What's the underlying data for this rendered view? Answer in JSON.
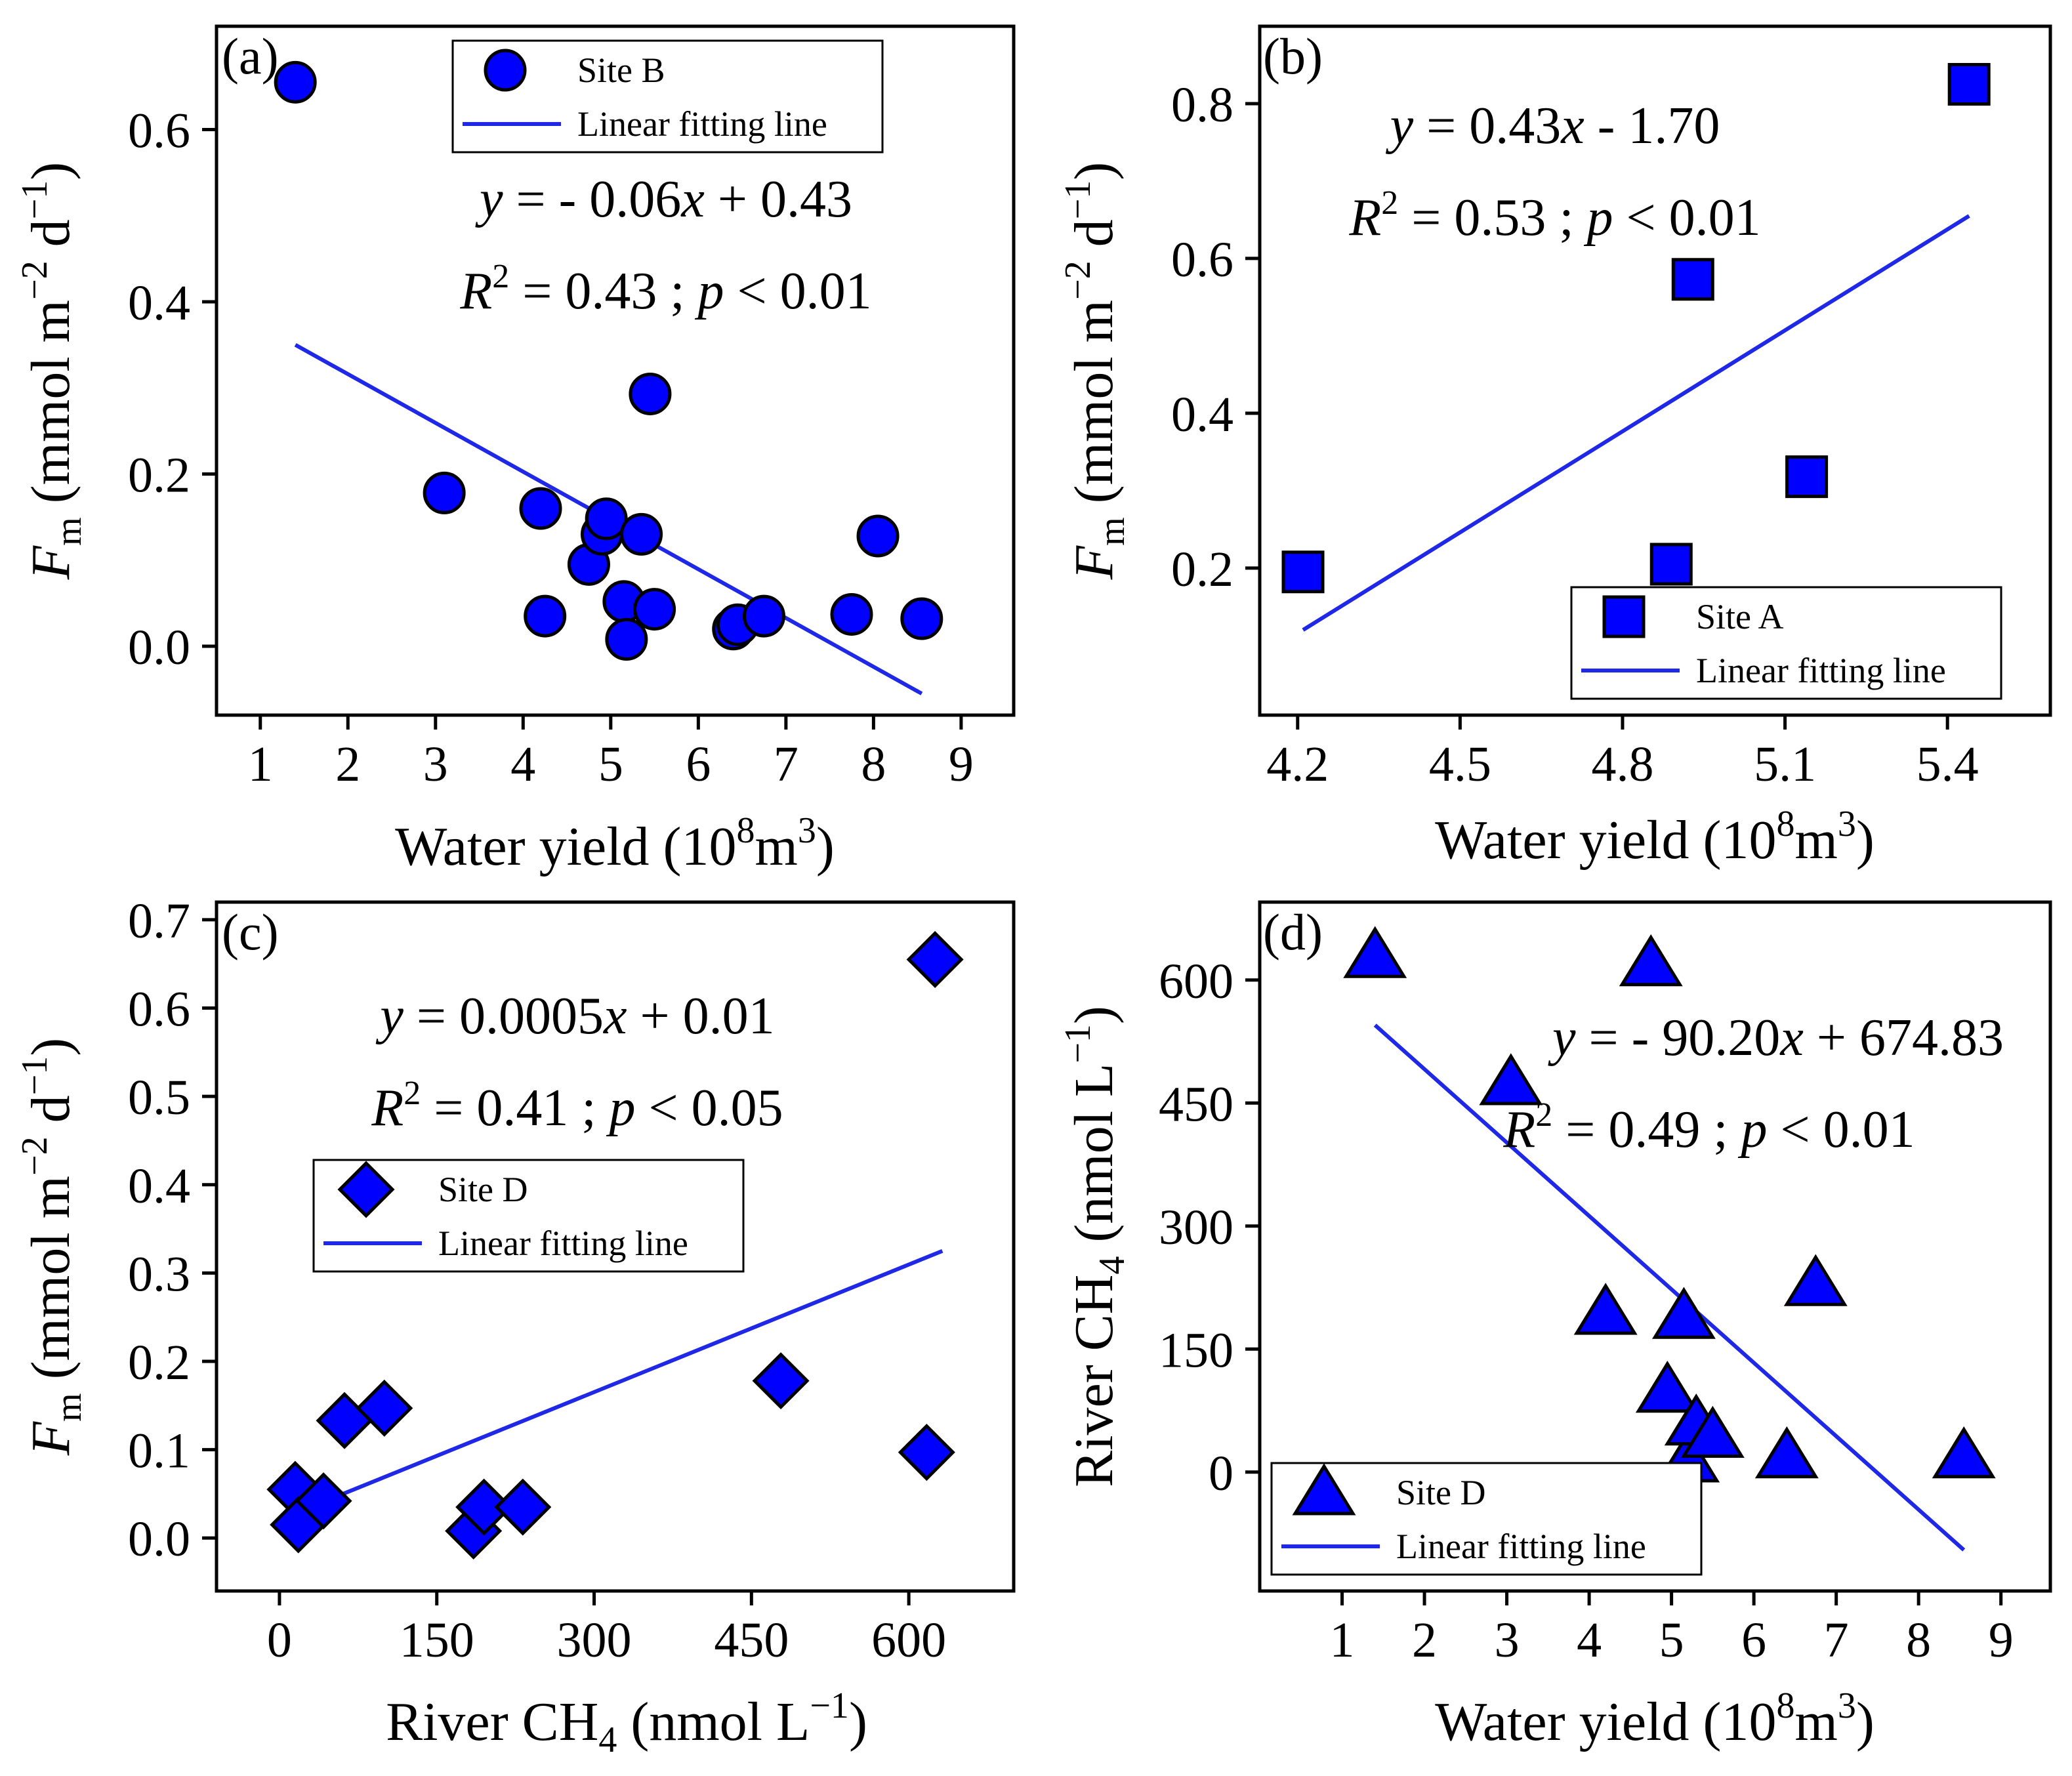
{
  "chart_data": [
    {
      "id": "a",
      "type": "scatter",
      "panel_label": "(a)",
      "xlabel_main": "Water yield (10",
      "xlabel_sup1": "8",
      "xlabel_mid": "m",
      "xlabel_sup2": "3",
      "xlabel_end": ")",
      "ylabel_var": "F",
      "ylabel_sub": "m",
      "ylabel_main": " (mmol m",
      "ylabel_sup1": "−2",
      "ylabel_mid": " d",
      "ylabel_sup2": "−1",
      "ylabel_end": ")",
      "xlim": [
        0.5,
        9.6
      ],
      "ylim": [
        -0.08,
        0.72
      ],
      "xticks": [
        1,
        2,
        3,
        4,
        5,
        6,
        7,
        8,
        9
      ],
      "yticks": [
        0.0,
        0.2,
        0.4,
        0.6
      ],
      "ytick_labels": [
        "0.0",
        "0.2",
        "0.4",
        "0.6"
      ],
      "marker": "circle",
      "series": [
        {
          "name": "Site B",
          "x": [
            1.4,
            3.1,
            4.2,
            4.25,
            4.75,
            4.9,
            4.95,
            5.15,
            5.18,
            5.35,
            5.45,
            5.5,
            6.4,
            6.45,
            6.75,
            7.75,
            8.05,
            8.55
          ],
          "y": [
            0.655,
            0.178,
            0.16,
            0.035,
            0.095,
            0.13,
            0.148,
            0.052,
            0.008,
            0.13,
            0.293,
            0.043,
            0.02,
            0.025,
            0.035,
            0.037,
            0.128,
            0.032
          ]
        }
      ],
      "fit": {
        "name": "Linear fitting line",
        "x": [
          1.4,
          8.55
        ],
        "y": [
          0.35,
          -0.055
        ]
      },
      "equation": {
        "lead": "y",
        "rest": " = - 0.06",
        "var": "x",
        "tail": " + 0.43"
      },
      "stats": {
        "r": "R",
        "sup": "2",
        "mid": " = 0.43 ; ",
        "p": "p",
        "tail": " < 0.01"
      },
      "legend": {
        "position": "top-center",
        "point_label": "Site B",
        "line_label": "Linear fitting line"
      }
    },
    {
      "id": "b",
      "type": "scatter",
      "panel_label": "(b)",
      "xlabel_main": "Water yield (10",
      "xlabel_sup1": "8",
      "xlabel_mid": "m",
      "xlabel_sup2": "3",
      "xlabel_end": ")",
      "ylabel_var": "F",
      "ylabel_sub": "m",
      "ylabel_main": " (mmol m",
      "ylabel_sup1": "−2",
      "ylabel_mid": " d",
      "ylabel_sup2": "−1",
      "ylabel_end": ")",
      "xlim": [
        4.13,
        5.59
      ],
      "ylim": [
        0.01,
        0.9
      ],
      "xticks": [
        4.2,
        4.5,
        4.8,
        5.1,
        5.4
      ],
      "yticks": [
        0.2,
        0.4,
        0.6,
        0.8
      ],
      "ytick_labels": [
        "0.2",
        "0.4",
        "0.6",
        "0.8"
      ],
      "marker": "square",
      "series": [
        {
          "name": "Site A",
          "x": [
            4.21,
            4.89,
            4.93,
            5.14,
            5.44
          ],
          "y": [
            0.195,
            0.205,
            0.573,
            0.318,
            0.825
          ]
        }
      ],
      "fit": {
        "name": "Linear fitting line",
        "x": [
          4.21,
          5.44
        ],
        "y": [
          0.12,
          0.655
        ]
      },
      "equation": {
        "lead": "y",
        "rest": " = 0.43",
        "var": "x",
        "tail": " - 1.70"
      },
      "stats": {
        "r": "R",
        "sup": "2",
        "mid": " = 0.53 ; ",
        "p": "p",
        "tail": " < 0.01"
      },
      "legend": {
        "position": "bottom-right",
        "point_label": "Site A",
        "line_label": "Linear fitting line"
      }
    },
    {
      "id": "c",
      "type": "scatter",
      "panel_label": "(c)",
      "xlabel_main": "River CH",
      "xlabel_sub": "4",
      "xlabel_rest": " (nmol L",
      "xlabel_sup": "−1",
      "xlabel_end": ")",
      "ylabel_var": "F",
      "ylabel_sub": "m",
      "ylabel_main": " (mmol m",
      "ylabel_sup1": "−2",
      "ylabel_mid": " d",
      "ylabel_sup2": "−1",
      "ylabel_end": ")",
      "xlim": [
        -60,
        700
      ],
      "ylim": [
        -0.06,
        0.72
      ],
      "xticks": [
        0,
        150,
        300,
        450,
        600
      ],
      "yticks": [
        0.0,
        0.1,
        0.2,
        0.3,
        0.4,
        0.5,
        0.6,
        0.7
      ],
      "ytick_labels": [
        "0.0",
        "0.1",
        "0.2",
        "0.3",
        "0.4",
        "0.5",
        "0.6",
        "0.7"
      ],
      "marker": "diamond",
      "series": [
        {
          "name": "Site D",
          "x": [
            15,
            18,
            42,
            62,
            100,
            185,
            195,
            232,
            478,
            617,
            625
          ],
          "y": [
            0.055,
            0.015,
            0.042,
            0.133,
            0.147,
            0.008,
            0.035,
            0.035,
            0.178,
            0.097,
            0.655
          ]
        }
      ],
      "fit": {
        "name": "Linear fitting line",
        "x": [
          15,
          632
        ],
        "y": [
          0.028,
          0.325
        ]
      },
      "equation": {
        "lead": "y",
        "rest": " = 0.0005",
        "var": "x",
        "tail": " + 0.01"
      },
      "stats": {
        "r": "R",
        "sup": "2",
        "mid": " = 0.41 ; ",
        "p": "p",
        "tail": " < 0.05"
      },
      "legend": {
        "position": "middle-left",
        "point_label": "Site D",
        "line_label": "Linear fitting line"
      }
    },
    {
      "id": "d",
      "type": "scatter",
      "panel_label": "(d)",
      "xlabel_main": "Water yield (10",
      "xlabel_sup1": "8",
      "xlabel_mid": "m",
      "xlabel_sup2": "3",
      "xlabel_end": ")",
      "ylabel_main": "River CH",
      "ylabel_sub": "4",
      "ylabel_rest": " (nmol L",
      "ylabel_sup": "−1",
      "ylabel_end": ")",
      "xlim": [
        0.0,
        9.6
      ],
      "ylim": [
        -145,
        695
      ],
      "xticks": [
        1,
        2,
        3,
        4,
        5,
        6,
        7,
        8,
        9
      ],
      "yticks": [
        0,
        150,
        300,
        450,
        600
      ],
      "ytick_labels": [
        "0",
        "150",
        "300",
        "450",
        "600"
      ],
      "marker": "triangle",
      "series": [
        {
          "name": "Site D",
          "x": [
            1.4,
            3.05,
            4.2,
            4.75,
            4.95,
            5.15,
            5.2,
            5.3,
            5.5,
            6.4,
            6.75,
            8.55
          ],
          "y": [
            630,
            475,
            195,
            620,
            100,
            190,
            15,
            60,
            45,
            20,
            230,
            20
          ]
        }
      ],
      "fit": {
        "name": "Linear fitting line",
        "x": [
          1.4,
          8.55
        ],
        "y": [
          545,
          -95
        ]
      },
      "equation": {
        "lead": "y",
        "rest": " = - 90.20",
        "var": "x",
        "tail": " + 674.83"
      },
      "stats": {
        "r": "R",
        "sup": "2",
        "mid": " = 0.49 ; ",
        "p": "p",
        "tail": " < 0.01"
      },
      "legend": {
        "position": "bottom-left",
        "point_label": "Site D",
        "line_label": "Linear fitting line"
      }
    }
  ],
  "colors": {
    "marker_fill": "#0000ff",
    "fit_line": "#1f28e6",
    "axis": "#000000"
  }
}
